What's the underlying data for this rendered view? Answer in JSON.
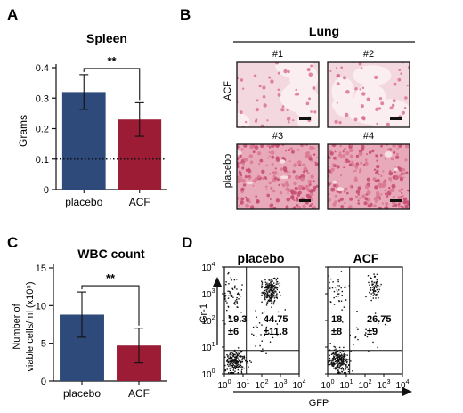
{
  "panels": {
    "a": "A",
    "b": "B",
    "c": "C",
    "d": "D"
  },
  "colors": {
    "placebo": "#2d4a7a",
    "acf": "#9c1c35",
    "tissue_bg": "#f4d8df",
    "tissue_air": "#fbeef0",
    "tissue_cell": "#d86a8e",
    "dots": "#111111"
  },
  "chart_data": [
    {
      "id": "spleen",
      "type": "bar",
      "title": "Spleen",
      "ylabel": "Grams",
      "xlabel": "",
      "categories": [
        "placebo",
        "ACF"
      ],
      "values": [
        0.32,
        0.23
      ],
      "errors": [
        0.057,
        0.055
      ],
      "ylim": [
        0,
        0.4
      ],
      "yticks": [
        "0",
        "0.1",
        "0.2",
        "0.3",
        "0.4"
      ],
      "reference_line": 0.1,
      "significance": "**",
      "grid": false
    },
    {
      "id": "wbc",
      "type": "bar",
      "title": "WBC count",
      "ylabel_line1": "Number of",
      "ylabel_line2": "viable cells/ml (x10⁵)",
      "xlabel": "",
      "categories": [
        "placebo",
        "ACF"
      ],
      "values": [
        8.8,
        4.7
      ],
      "errors": [
        3.0,
        2.3
      ],
      "ylim": [
        0,
        15
      ],
      "yticks": [
        "0",
        "5",
        "10",
        "15"
      ],
      "significance": "**",
      "grid": false
    },
    {
      "id": "facs",
      "type": "scatter",
      "xlabel": "GFP",
      "ylabel": "Gr-1",
      "xscale": "log",
      "yscale": "log",
      "xlim": [
        1,
        10000
      ],
      "ylim": [
        1,
        10000
      ],
      "gate_x": 15,
      "gate_y": 7.5,
      "xticks_exp": [
        "0",
        "1",
        "2",
        "3",
        "4"
      ],
      "yticks_exp": [
        "0",
        "1",
        "2",
        "3",
        "4"
      ],
      "tick_base": "10",
      "panels": [
        {
          "name": "placebo",
          "q_left": "19.3",
          "q_left_sd": "±6",
          "q_right": "44.75",
          "q_right_sd": "±11.8"
        },
        {
          "name": "ACF",
          "q_left": "18",
          "q_left_sd": "±8",
          "q_right": "26.75",
          "q_right_sd": "±9"
        }
      ]
    }
  ],
  "lung": {
    "title": "Lung",
    "row_labels": [
      "ACF",
      "placebo"
    ],
    "images": [
      {
        "label": "#1",
        "kind": "airy"
      },
      {
        "label": "#2",
        "kind": "airy"
      },
      {
        "label": "#3",
        "kind": "dense"
      },
      {
        "label": "#4",
        "kind": "dense"
      }
    ]
  }
}
